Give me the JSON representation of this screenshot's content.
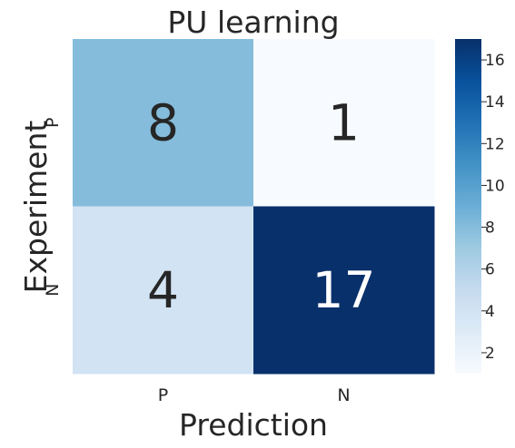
{
  "chart_data": {
    "type": "heatmap",
    "title": "PU learning",
    "xlabel": "Prediction",
    "ylabel": "Experiment",
    "x_categories": [
      "P",
      "N"
    ],
    "y_categories": [
      "P",
      "N"
    ],
    "values": [
      [
        8,
        1
      ],
      [
        4,
        17
      ]
    ],
    "annotations": [
      "8",
      "1",
      "4",
      "17"
    ],
    "colormap": "Blues",
    "vmin": 1,
    "vmax": 17,
    "colorbar_ticks": [
      "2",
      "4",
      "6",
      "8",
      "10",
      "12",
      "14",
      "16"
    ],
    "colors": {
      "cell_8": "#84bcdb",
      "cell_1": "#f7fbff",
      "cell_4": "#d0e1f2",
      "cell_17": "#08306b",
      "text_dark": "#262626",
      "text_light": "#ffffff"
    }
  }
}
